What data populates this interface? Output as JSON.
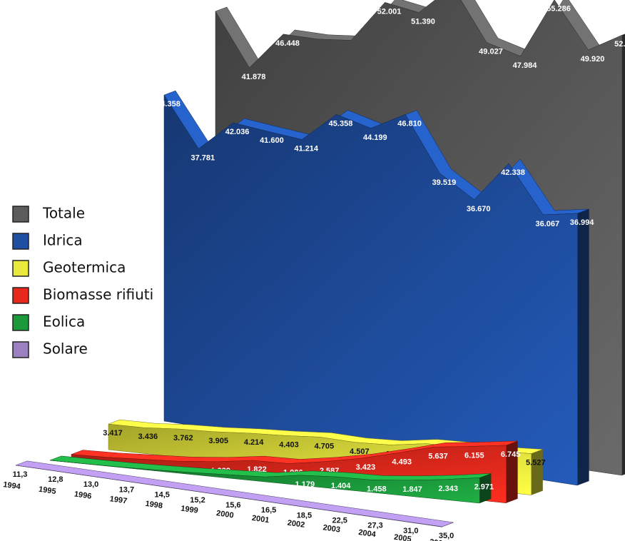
{
  "chart_data": {
    "type": "area",
    "categories": [
      "1994",
      "1995",
      "1996",
      "1997",
      "1998",
      "1999",
      "2000",
      "2001",
      "2002",
      "2003",
      "2004",
      "2005",
      "2006"
    ],
    "legend": "left",
    "series": [
      {
        "name": "Totale",
        "color": "#5c5c5c",
        "values": [
          47980,
          41878,
          46448,
          46460,
          46900,
          52001,
          51390,
          55099,
          49027,
          47984,
          55286,
          49920,
          52272
        ],
        "value_labels": [
          null,
          "41.878",
          "46.448",
          null,
          null,
          "52.001",
          "51.390",
          "55.099",
          "49.027",
          "47.984",
          "55.286",
          "49.920",
          "52.272"
        ]
      },
      {
        "name": "Idrica",
        "color": "#1f4fa3",
        "values": [
          44358,
          37781,
          42036,
          41600,
          41214,
          45358,
          44199,
          46810,
          39519,
          36670,
          42338,
          36067,
          36994
        ],
        "value_labels": [
          "44.358",
          "37.781",
          "42.036",
          "41.600",
          "41.214",
          "45.358",
          "44.199",
          "46.810",
          "39.519",
          "36.670",
          "42.338",
          "36.067",
          "36.994"
        ]
      },
      {
        "name": "Geotermica",
        "color": "#e9e93c",
        "values": [
          3417,
          3436,
          3762,
          3905,
          4214,
          4403,
          4705,
          4507,
          4662,
          5341,
          5437,
          5324,
          5527
        ],
        "value_labels": [
          "3.417",
          "3.436",
          "3.762",
          "3.905",
          "4.214",
          "4.403",
          "4.705",
          "4.507",
          "4.662",
          null,
          null,
          null,
          "5.527"
        ]
      },
      {
        "name": "Biomasse rifiuti",
        "color": "#e8281c",
        "values": [
          283,
          387,
          604,
          820,
          1229,
          1822,
          1906,
          2587,
          3423,
          4493,
          5637,
          6155,
          6745
        ],
        "value_labels": [
          "283",
          "387",
          "604",
          "820",
          "1.229",
          "1.822",
          "1.906",
          "2.587",
          "3.423",
          "4.493",
          "5.637",
          "6.155",
          "6.745"
        ]
      },
      {
        "name": "Eolica",
        "color": "#1b993b",
        "values": [
          6,
          10,
          33,
          118,
          232,
          403,
          563,
          1179,
          1404,
          1458,
          1847,
          2343,
          2971
        ],
        "value_labels": [
          "6",
          "10",
          "33",
          "118",
          "232",
          "403",
          "563",
          "1.179",
          "1.404",
          "1.458",
          "1.847",
          "2.343",
          "2.971"
        ]
      },
      {
        "name": "Solare",
        "color": "#9b80c2",
        "values": [
          11.3,
          12.8,
          13.0,
          13.7,
          14.5,
          15.2,
          15.6,
          16.5,
          18.5,
          22.5,
          27.3,
          31.0,
          35.0
        ],
        "value_labels": [
          "11,3",
          "12,8",
          "13,0",
          "13,7",
          "14,5",
          "15,2",
          "15,6",
          "16,5",
          "18,5",
          "22,5",
          "27,3",
          "31,0",
          "35,0"
        ]
      }
    ]
  }
}
